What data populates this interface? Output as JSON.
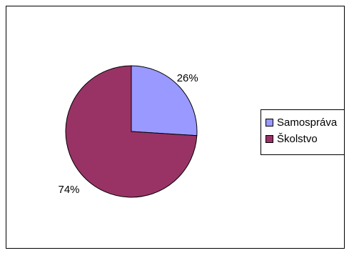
{
  "chart_data": {
    "type": "pie",
    "title": "",
    "categories": [
      "Samospráva",
      "Školstvo"
    ],
    "values": [
      26,
      74
    ],
    "labels": [
      "26%",
      "74%"
    ],
    "colors": [
      "#9999ff",
      "#993366"
    ],
    "legend": "right",
    "start_angle": "12 o'clock, clockwise"
  }
}
